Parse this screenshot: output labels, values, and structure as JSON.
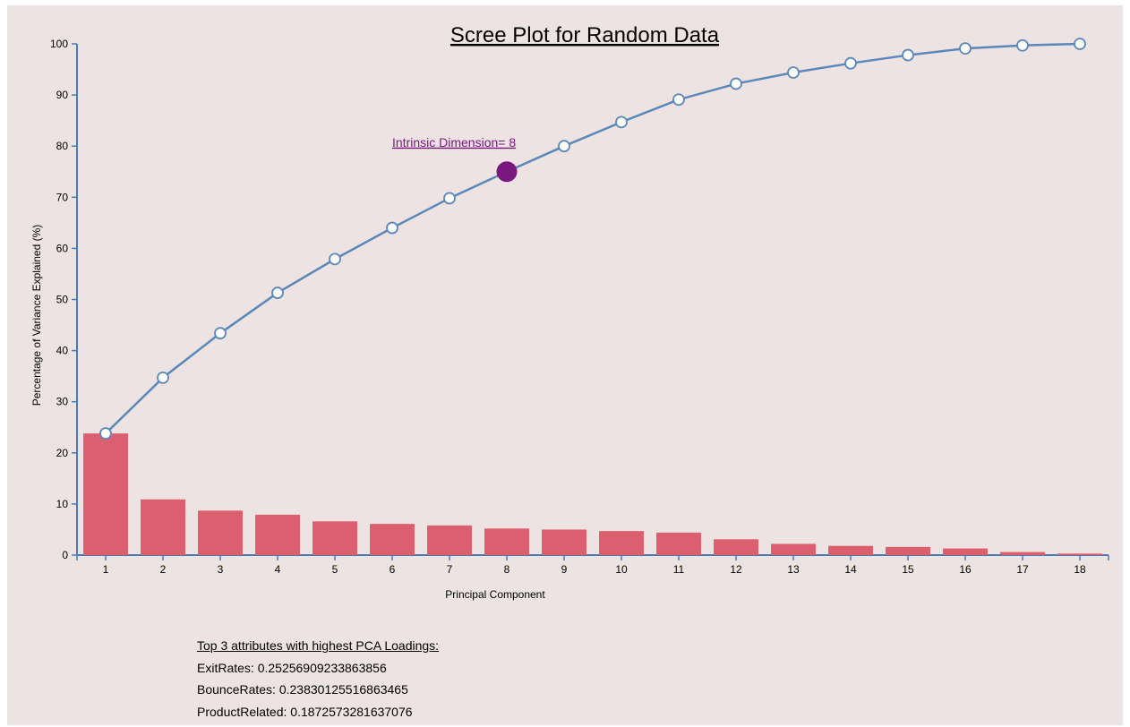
{
  "chart_data": {
    "type": "bar",
    "title": "Scree Plot for Random Data",
    "xlabel": "Principal Component",
    "ylabel": "Percentage of Variance Explained (%)",
    "ylim": [
      0,
      100
    ],
    "yticks": [
      0,
      10,
      20,
      30,
      40,
      50,
      60,
      70,
      80,
      90,
      100
    ],
    "categories": [
      "1",
      "2",
      "3",
      "4",
      "5",
      "6",
      "7",
      "8",
      "9",
      "10",
      "11",
      "12",
      "13",
      "14",
      "15",
      "16",
      "17",
      "18"
    ],
    "series": [
      {
        "type": "bar",
        "values": [
          23.8,
          10.9,
          8.7,
          7.9,
          6.6,
          6.1,
          5.8,
          5.2,
          5.0,
          4.7,
          4.4,
          3.1,
          2.2,
          1.8,
          1.6,
          1.3,
          0.6,
          0.3
        ]
      },
      {
        "type": "line",
        "values": [
          23.8,
          34.7,
          43.4,
          51.3,
          57.9,
          64.0,
          69.8,
          75.0,
          80.0,
          84.7,
          89.1,
          92.2,
          94.4,
          96.2,
          97.8,
          99.1,
          99.7,
          100.0
        ]
      }
    ],
    "annotation": {
      "label": "Intrinsic Dimension= 8",
      "component": 8,
      "value": 75.0
    },
    "colors": {
      "bar": "#dc5f6f",
      "line": "#5b88b8",
      "highlight": "#7b1880",
      "axis": "#4a7ab0"
    }
  },
  "loadings": {
    "heading": "Top 3 attributes with highest PCA Loadings:",
    "items": [
      "ExitRates: 0.25256909233863856",
      "BounceRates: 0.23830125516863465",
      "ProductRelated: 0.1872573281637076"
    ]
  }
}
